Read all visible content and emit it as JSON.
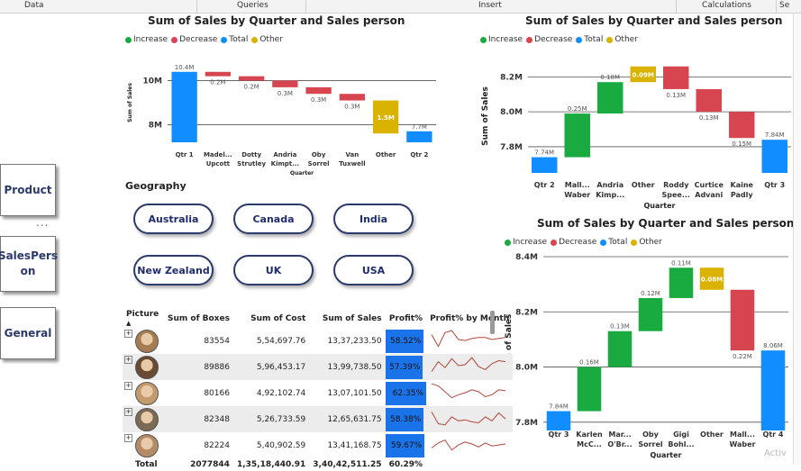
{
  "ribbon": {
    "data": "Data",
    "queries": "Queries",
    "insert": "Insert",
    "calculations": "Calculations",
    "se": "Se"
  },
  "side_buttons": {
    "product": "Product",
    "salesperson": "SalesPers\non",
    "general": "General",
    "more": "..."
  },
  "legend": {
    "increase": "Increase",
    "decrease": "Decrease",
    "total": "Total",
    "other": "Other"
  },
  "colors": {
    "increase": "#1aab40",
    "decrease": "#d64550",
    "total": "#118dff",
    "other": "#d9b300",
    "button_border": "#2b3a6b"
  },
  "geography": {
    "title": "Geography",
    "options": [
      "Australia",
      "Canada",
      "India",
      "New Zealand",
      "UK",
      "USA"
    ]
  },
  "chart_data": [
    {
      "type": "waterfall",
      "title": "Sum of Sales by Quarter and Sales person",
      "xlabel": "Quarter",
      "ylabel": "Sum of Sales",
      "ylim": [
        7.2,
        10.8
      ],
      "yticks": [
        {
          "v": 8,
          "label": "8M"
        },
        {
          "v": 10,
          "label": "10M"
        }
      ],
      "steps": [
        {
          "label": "Qtr 1",
          "label2": "",
          "kind": "total",
          "from": 0,
          "to": 10.4,
          "data_label": "10.4M"
        },
        {
          "label": "Madel...",
          "label2": "Upcott",
          "kind": "decrease",
          "from": 10.4,
          "to": 10.2,
          "data_label": "0.2M"
        },
        {
          "label": "Dotty",
          "label2": "Strutley",
          "kind": "decrease",
          "from": 10.2,
          "to": 10.0,
          "data_label": "0.2M"
        },
        {
          "label": "Andria",
          "label2": "Kimpt...",
          "kind": "decrease",
          "from": 10.0,
          "to": 9.7,
          "data_label": "0.3M"
        },
        {
          "label": "Oby",
          "label2": "Sorrel",
          "kind": "decrease",
          "from": 9.7,
          "to": 9.4,
          "data_label": "0.3M"
        },
        {
          "label": "Van",
          "label2": "Tuxwell",
          "kind": "decrease",
          "from": 9.4,
          "to": 9.1,
          "data_label": "0.3M"
        },
        {
          "label": "Other",
          "label2": "",
          "kind": "other",
          "from": 9.1,
          "to": 7.6,
          "data_label": "1.5M"
        },
        {
          "label": "Qtr 2",
          "label2": "",
          "kind": "total",
          "from": 0,
          "to": 7.7,
          "data_label": "7.7M"
        }
      ]
    },
    {
      "type": "waterfall",
      "title": "Sum of Sales by Quarter and Sales person",
      "xlabel": "Quarter",
      "ylabel": "Sum of Sales",
      "ylim": [
        7.65,
        8.3
      ],
      "yticks": [
        {
          "v": 7.8,
          "label": "7.8M"
        },
        {
          "v": 8.0,
          "label": "8.0M"
        },
        {
          "v": 8.2,
          "label": "8.2M"
        }
      ],
      "steps": [
        {
          "label": "Qtr 2",
          "label2": "",
          "kind": "total",
          "from": 0,
          "to": 7.74,
          "data_label": "7.74M"
        },
        {
          "label": "Mall...",
          "label2": "Waber",
          "kind": "increase",
          "from": 7.74,
          "to": 7.99,
          "data_label": "0.25M"
        },
        {
          "label": "Andria",
          "label2": "Kimp...",
          "kind": "increase",
          "from": 7.99,
          "to": 8.17,
          "data_label": "0.18M"
        },
        {
          "label": "Other",
          "label2": "",
          "kind": "other",
          "from": 8.17,
          "to": 8.26,
          "data_label": "0.09M"
        },
        {
          "label": "Roddy",
          "label2": "Spee...",
          "kind": "decrease",
          "from": 8.26,
          "to": 8.13,
          "data_label": "0.13M"
        },
        {
          "label": "Curtice",
          "label2": "Advani",
          "kind": "decrease",
          "from": 8.13,
          "to": 8.0,
          "data_label": "0.13M"
        },
        {
          "label": "Kaine",
          "label2": "Padly",
          "kind": "decrease",
          "from": 8.0,
          "to": 7.85,
          "data_label": "0.15M"
        },
        {
          "label": "Qtr 3",
          "label2": "",
          "kind": "total",
          "from": 0,
          "to": 7.84,
          "data_label": "7.84M"
        }
      ]
    },
    {
      "type": "waterfall",
      "title": "Sum of Sales by Quarter and Sales person",
      "xlabel": "Quarter",
      "ylabel": "Sum of Sales",
      "ylim": [
        7.77,
        8.4
      ],
      "yticks": [
        {
          "v": 7.8,
          "label": "7.8M"
        },
        {
          "v": 8.0,
          "label": "8.0M"
        },
        {
          "v": 8.2,
          "label": "8.2M"
        },
        {
          "v": 8.4,
          "label": "8.4M"
        }
      ],
      "steps": [
        {
          "label": "Qtr 3",
          "label2": "",
          "kind": "total",
          "from": 0,
          "to": 7.84,
          "data_label": "7.84M"
        },
        {
          "label": "Karlen",
          "label2": "McC...",
          "kind": "increase",
          "from": 7.84,
          "to": 8.0,
          "data_label": "0.16M"
        },
        {
          "label": "Mar...",
          "label2": "O'Br...",
          "kind": "increase",
          "from": 8.0,
          "to": 8.13,
          "data_label": "0.13M"
        },
        {
          "label": "Oby",
          "label2": "Sorrel",
          "kind": "increase",
          "from": 8.13,
          "to": 8.25,
          "data_label": "0.12M"
        },
        {
          "label": "Gigi",
          "label2": "Bohl...",
          "kind": "increase",
          "from": 8.25,
          "to": 8.36,
          "data_label": "0.11M"
        },
        {
          "label": "Other",
          "label2": "",
          "kind": "other",
          "from": 8.36,
          "to": 8.28,
          "data_label": "0.08M"
        },
        {
          "label": "Mall...",
          "label2": "Waber",
          "kind": "decrease",
          "from": 8.28,
          "to": 8.06,
          "data_label": "0.22M"
        },
        {
          "label": "Qtr 4",
          "label2": "",
          "kind": "total",
          "from": 0,
          "to": 8.06,
          "data_label": "8.06M"
        }
      ]
    }
  ],
  "table": {
    "headers": [
      "Picture",
      "Sum of Boxes",
      "Sum of Cost",
      "Sum of Sales",
      "Profit%",
      "Profit% by Month"
    ],
    "rows": [
      {
        "boxes": "83554",
        "cost": "5,54,697.76",
        "sales": "13,37,233.50",
        "profit": "58.52%",
        "profit_pct": 58.52,
        "spark": [
          0.75,
          0.15,
          0.85,
          0.95,
          0.5,
          0.45,
          0.55,
          0.6,
          0.6,
          0.5,
          0.55,
          0.6
        ]
      },
      {
        "boxes": "89886",
        "cost": "5,96,453.17",
        "sales": "13,99,738.50",
        "profit": "57.39%",
        "profit_pct": 57.39,
        "spark": [
          0.2,
          0.7,
          0.4,
          0.85,
          0.5,
          0.55,
          0.9,
          0.45,
          0.3,
          0.6,
          0.75,
          0.7
        ]
      },
      {
        "boxes": "80166",
        "cost": "4,92,102.74",
        "sales": "13,07,101.50",
        "profit": "62.35%",
        "profit_pct": 62.35,
        "spark": [
          0.9,
          0.8,
          0.5,
          0.2,
          0.35,
          0.45,
          0.6,
          0.5,
          0.25,
          0.35,
          0.6,
          0.55
        ]
      },
      {
        "boxes": "82348",
        "cost": "5,26,733.59",
        "sales": "12,65,631.75",
        "profit": "58.38%",
        "profit_pct": 58.38,
        "spark": [
          0.8,
          0.2,
          0.15,
          0.55,
          0.35,
          0.4,
          0.3,
          0.25,
          0.55,
          0.35,
          0.75,
          0.45
        ]
      },
      {
        "boxes": "82224",
        "cost": "5,40,902.59",
        "sales": "13,41,168.75",
        "profit": "59.67%",
        "profit_pct": 59.67,
        "spark": [
          0.3,
          0.55,
          0.7,
          0.2,
          0.45,
          0.6,
          0.5,
          0.35,
          0.55,
          0.4,
          0.45,
          0.5
        ]
      }
    ],
    "total": {
      "label": "Total",
      "boxes": "2077844",
      "cost": "1,35,18,440.91",
      "sales": "3,40,42,511.25",
      "profit": "60.29%"
    }
  },
  "watermark": "Activ"
}
